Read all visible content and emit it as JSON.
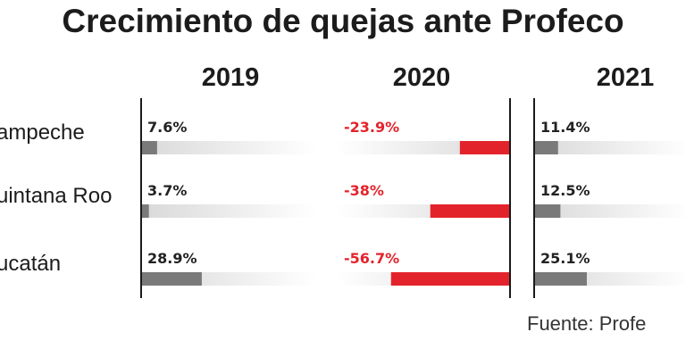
{
  "chart_data": {
    "type": "bar",
    "title": "Crecimiento de quejas ante Profeco",
    "source": "Fuente: Profe",
    "categories": [
      "ampeche",
      "uintana Roo",
      "ucatán"
    ],
    "series": [
      {
        "name": "2019",
        "values": [
          7.6,
          3.7,
          28.9
        ],
        "labels": [
          "7.6%",
          "3.7%",
          "28.9%"
        ]
      },
      {
        "name": "2020",
        "values": [
          -23.9,
          -38,
          -56.7
        ],
        "labels": [
          "-23.9%",
          "-38%",
          "-56.7%"
        ]
      },
      {
        "name": "2021",
        "values": [
          11.4,
          12.5,
          25.1
        ],
        "labels": [
          "11.4%",
          "12.5%",
          "25.1%"
        ]
      }
    ],
    "colors": {
      "positive_bar": "#7a7a7a",
      "negative_bar": "#e3232b",
      "positive_text": "#222222",
      "negative_text": "#e3232b",
      "track": "#e2e2e2",
      "axis": "#1a1a1a"
    }
  }
}
